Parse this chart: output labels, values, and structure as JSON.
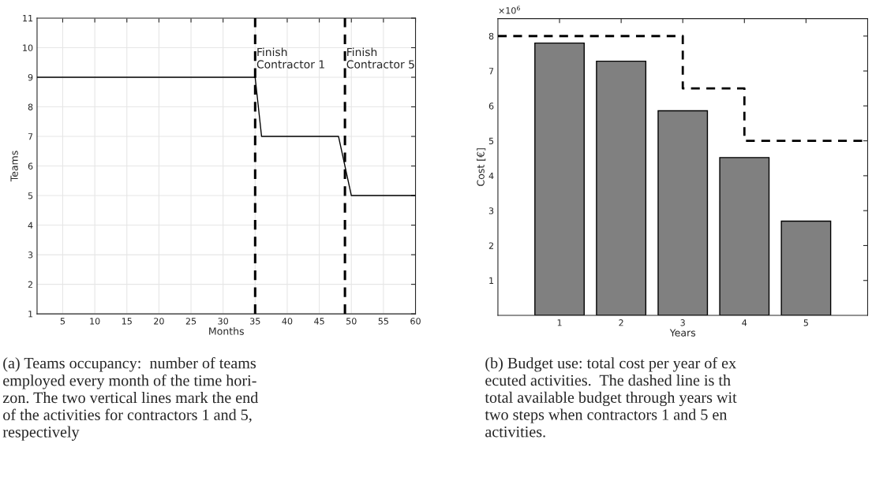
{
  "chart_data": [
    {
      "type": "line",
      "xlabel": "Months",
      "ylabel": "Teams",
      "xlim": [
        1,
        60
      ],
      "ylim": [
        1,
        11
      ],
      "xticks": [
        5,
        10,
        15,
        20,
        25,
        30,
        35,
        40,
        45,
        50,
        55,
        60
      ],
      "yticks": [
        1,
        2,
        3,
        4,
        5,
        6,
        7,
        8,
        9,
        10,
        11
      ],
      "grid": true,
      "series": [
        {
          "color": "#000000",
          "x": [
            1,
            35,
            36,
            48,
            50,
            60
          ],
          "values": [
            9,
            9,
            7,
            7,
            5,
            5
          ]
        }
      ],
      "ref_lines": [
        {
          "axis": "x",
          "value": 35,
          "label": "Finish\nContractor 1",
          "color": "#000000",
          "line_style": "dashed"
        },
        {
          "axis": "x",
          "value": 49,
          "label": "Finish\nContractor 5",
          "color": "#000000",
          "line_style": "dashed"
        }
      ],
      "annotations": [
        "(a) Teams occupancy:  number of teams\nemployed every month of the time hori-\nzon. The two vertical lines mark the end\nof the activities for contractors 1 and 5,\nrespectively"
      ]
    },
    {
      "type": "bar",
      "xlabel": "Years",
      "ylabel": "Cost [€]",
      "xlim": [
        0,
        6
      ],
      "ylim": [
        0,
        8.5
      ],
      "xticks": [
        1,
        2,
        3,
        4,
        5
      ],
      "yticks": [
        1,
        2,
        3,
        4,
        5,
        6,
        7,
        8
      ],
      "grid": false,
      "series": [
        {
          "type": "bar",
          "color": "#808080",
          "x": [
            1,
            2,
            3,
            4,
            5
          ],
          "values": [
            7.8,
            7.28,
            5.86,
            4.52,
            2.7
          ]
        },
        {
          "type": "line",
          "color": "#000000",
          "line_style": "dashed",
          "x": [
            0,
            3,
            3,
            4,
            4,
            6
          ],
          "values": [
            8,
            8,
            6.5,
            6.5,
            5,
            5
          ]
        }
      ],
      "annotations": [
        "×10$^{6}$",
        "(b) Budget use: total cost per year of ex\necuted activities.  The dashed line is th\ntotal available budget through years wit\ntwo steps when contractors 1 and 5 en\nactivities."
      ]
    }
  ]
}
